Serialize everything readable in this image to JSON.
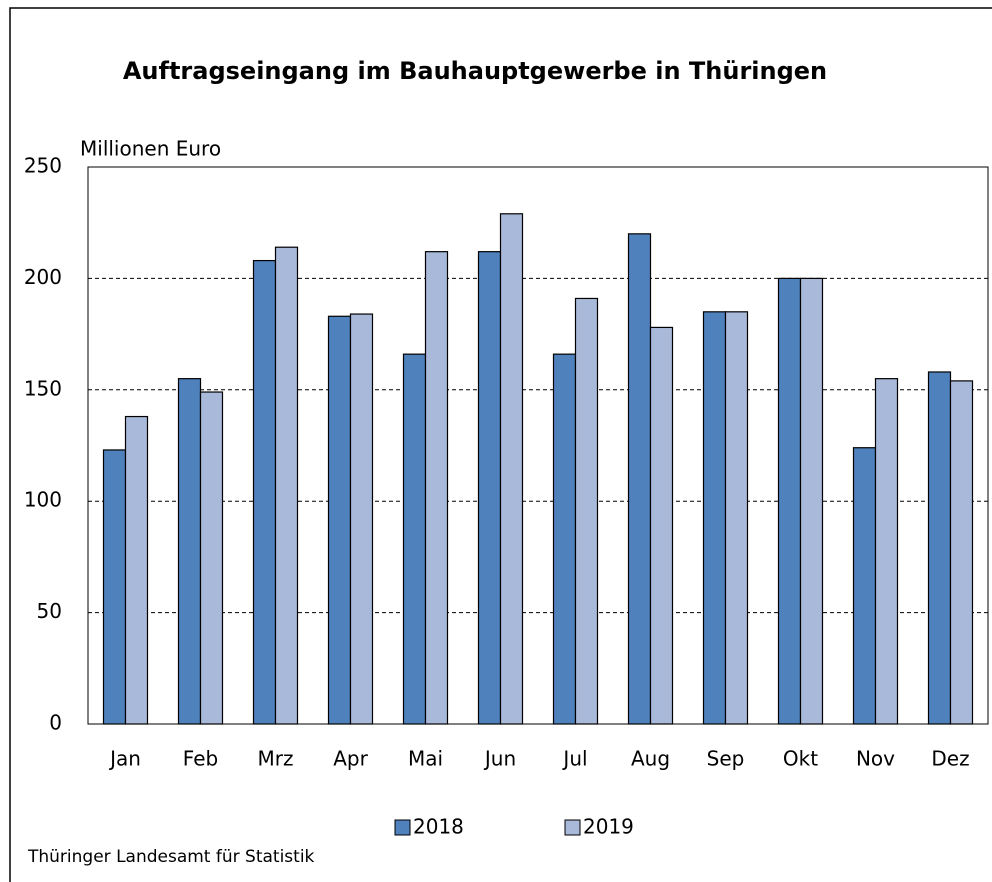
{
  "chart_data": {
    "type": "bar",
    "title": "Auftragseingang im  Bauhauptgewerbe in Thüringen",
    "y_label": "Millionen Euro",
    "source": "Thüringer Landesamt für Statistik",
    "categories": [
      "Jan",
      "Feb",
      "Mrz",
      "Apr",
      "Mai",
      "Jun",
      "Jul",
      "Aug",
      "Sep",
      "Okt",
      "Nov",
      "Dez"
    ],
    "series": [
      {
        "name": "2018",
        "color": "#4f81bd",
        "values": [
          123,
          155,
          208,
          183,
          166,
          212,
          166,
          220,
          185,
          200,
          124,
          158
        ]
      },
      {
        "name": "2019",
        "color": "#a9b9d9",
        "values": [
          138,
          149,
          214,
          184,
          212,
          229,
          191,
          178,
          185,
          200,
          155,
          154
        ]
      }
    ],
    "ylim": [
      0,
      250
    ],
    "yticks": [
      0,
      50,
      100,
      150,
      200,
      250
    ],
    "grid": true
  }
}
